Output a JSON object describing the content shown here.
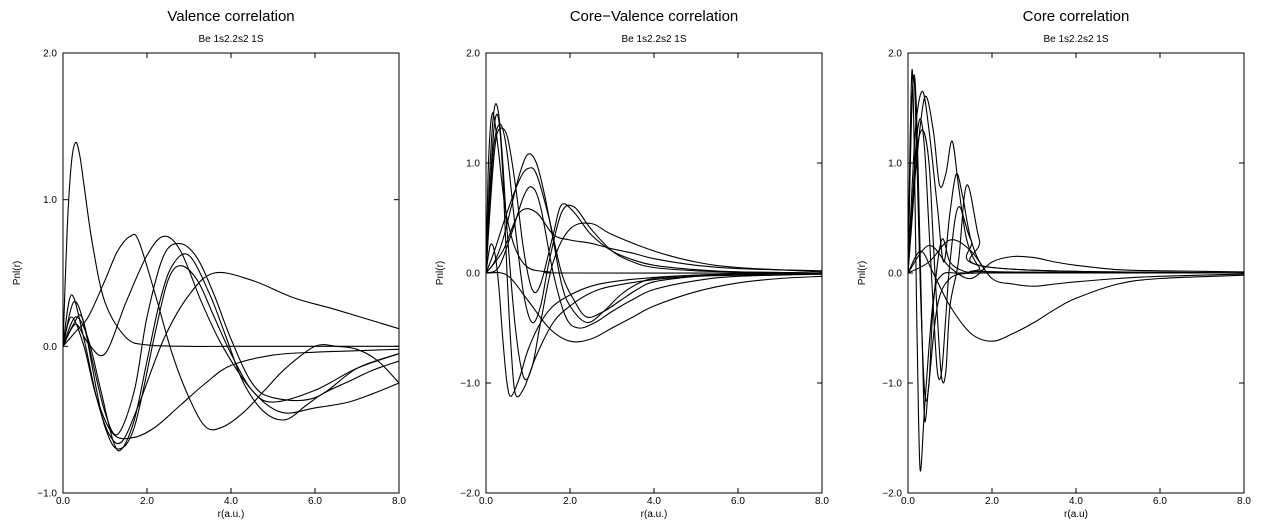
{
  "chart_data": [
    {
      "type": "line",
      "title": "Valence correlation",
      "subtitle": "Be 1s2.2s2 1S",
      "xlabel": "r(a.u.)",
      "ylabel": "Pnl(r)",
      "xlim": [
        0,
        8
      ],
      "ylim": [
        -1,
        2
      ],
      "xticks": [
        0,
        2,
        4,
        6,
        8
      ],
      "xtick_labels": [
        "0.0",
        "2.0",
        "4.0",
        "6.0",
        "8.0"
      ],
      "yticks": [
        -1,
        0,
        1,
        2
      ],
      "ytick_labels": [
        "−1.0",
        "0.0",
        "1.0",
        "2.0"
      ],
      "series": [
        {
          "x": [
            0,
            0.1,
            0.2,
            0.3,
            0.4,
            0.5,
            0.7,
            1.0,
            1.5,
            2.0,
            3.0,
            4.0,
            6.0,
            8.0
          ],
          "y": [
            0,
            0.8,
            1.25,
            1.39,
            1.3,
            1.1,
            0.7,
            0.3,
            0.06,
            0.01,
            0,
            0,
            0,
            0
          ]
        },
        {
          "x": [
            0,
            0.2,
            0.5,
            0.8,
            1.2,
            1.7,
            2.2,
            2.8,
            3.4,
            4.0,
            5.0,
            6.0,
            7.0,
            8.0
          ],
          "y": [
            0,
            0.2,
            0.0,
            -0.35,
            -0.6,
            -0.62,
            -0.55,
            -0.4,
            -0.25,
            -0.13,
            -0.06,
            -0.04,
            -0.03,
            -0.02
          ]
        },
        {
          "x": [
            0,
            0.2,
            0.5,
            0.8,
            1.1,
            1.4,
            1.8,
            2.4,
            3.0,
            3.6,
            4.5,
            5.5,
            6.5,
            8.0
          ],
          "y": [
            0,
            0.35,
            0.05,
            -0.35,
            -0.6,
            -0.65,
            -0.4,
            0.05,
            0.35,
            0.5,
            0.45,
            0.33,
            0.25,
            0.12
          ]
        },
        {
          "x": [
            0,
            0.25,
            0.5,
            0.8,
            1.0,
            1.3,
            1.7,
            2.2,
            2.5,
            2.8,
            3.2,
            3.6,
            4.0,
            4.5,
            5.0,
            6.0,
            7.0,
            8.0
          ],
          "y": [
            0,
            0.3,
            0.15,
            -0.3,
            -0.55,
            -0.7,
            -0.55,
            0.1,
            0.45,
            0.55,
            0.45,
            0.2,
            -0.05,
            -0.3,
            -0.38,
            -0.3,
            -0.15,
            -0.05
          ]
        },
        {
          "x": [
            0,
            0.25,
            0.45,
            0.7,
            1.0,
            1.3,
            1.7,
            2.0,
            2.4,
            2.8,
            3.2,
            3.6,
            4.0,
            4.5,
            5.0,
            6.0,
            7.0,
            8.0
          ],
          "y": [
            0,
            0.15,
            0.2,
            -0.1,
            -0.45,
            -0.6,
            -0.3,
            0.2,
            0.62,
            0.7,
            0.6,
            0.35,
            0.05,
            -0.25,
            -0.35,
            -0.35,
            -0.15,
            -0.05
          ]
        },
        {
          "x": [
            0,
            0.3,
            0.6,
            0.9,
            1.2,
            1.4,
            1.7,
            2.0,
            2.3,
            2.6,
            3.0,
            3.5,
            3.9,
            4.3,
            4.8,
            5.3,
            5.8,
            6.2,
            6.8,
            7.4,
            8.0
          ],
          "y": [
            0,
            0.2,
            0.05,
            -0.3,
            -0.65,
            -0.7,
            -0.5,
            -0.1,
            0.3,
            0.55,
            0.62,
            0.35,
            0.05,
            -0.25,
            -0.45,
            -0.5,
            -0.4,
            -0.32,
            -0.24,
            -0.16,
            -0.1
          ]
        },
        {
          "x": [
            0,
            0.3,
            0.6,
            1.0,
            1.3,
            1.6,
            1.8,
            2.2,
            2.6,
            3.0,
            3.4,
            3.8,
            4.3,
            4.8,
            5.3,
            6.0,
            6.5,
            7.0,
            7.5,
            8.0
          ],
          "y": [
            0,
            0.1,
            0.2,
            0.45,
            0.65,
            0.75,
            0.72,
            0.35,
            -0.05,
            -0.35,
            -0.55,
            -0.55,
            -0.45,
            -0.3,
            -0.15,
            0.0,
            0.0,
            -0.02,
            -0.1,
            -0.25
          ]
        },
        {
          "x": [
            0,
            0.3,
            0.6,
            1.0,
            1.5,
            2.0,
            2.4,
            2.8,
            3.3,
            3.8,
            4.5,
            5.2,
            6.0,
            6.8,
            7.4,
            8.0
          ],
          "y": [
            0,
            0.15,
            0.02,
            -0.05,
            0.3,
            0.62,
            0.75,
            0.65,
            0.3,
            0.0,
            -0.3,
            -0.45,
            -0.42,
            -0.38,
            -0.32,
            -0.25
          ]
        }
      ]
    },
    {
      "type": "line",
      "title": "Core−Valence correlation",
      "subtitle": "Be 1s2.2s2 1S",
      "xlabel": "r(a.u.)",
      "ylabel": "Pnl(r)",
      "xlim": [
        0,
        8
      ],
      "ylim": [
        -2,
        2
      ],
      "xticks": [
        0,
        2,
        4,
        6,
        8
      ],
      "xtick_labels": [
        "0.0",
        "2.0",
        "4.0",
        "6.0",
        "8.0"
      ],
      "yticks": [
        -2,
        -1,
        0,
        1,
        2
      ],
      "ytick_labels": [
        "−2.0",
        "−1.0",
        "0.0",
        "1.0",
        "2.0"
      ],
      "series": [
        {
          "x": [
            0,
            0.05,
            0.1,
            0.15,
            0.2,
            0.3,
            0.4,
            0.5,
            0.7,
            1.0,
            1.5,
            2.0,
            8.0
          ],
          "y": [
            0,
            0.9,
            1.3,
            1.45,
            1.4,
            1.1,
            0.75,
            0.5,
            0.22,
            0.05,
            0.01,
            0,
            0
          ]
        },
        {
          "x": [
            0,
            0.1,
            0.2,
            0.3,
            0.4,
            0.5,
            0.6,
            0.7,
            0.9,
            1.2,
            1.6,
            2.0,
            2.5,
            3.0,
            4.0,
            5.0,
            6.0,
            8.0
          ],
          "y": [
            0,
            0.8,
            1.35,
            1.4,
            0.9,
            0.0,
            -0.7,
            -1.1,
            -1.05,
            -0.75,
            -0.45,
            -0.3,
            -0.18,
            -0.12,
            -0.06,
            -0.03,
            -0.02,
            -0.01
          ]
        },
        {
          "x": [
            0,
            0.1,
            0.2,
            0.3,
            0.4,
            0.5,
            0.6,
            0.8,
            1.0,
            1.3,
            1.6,
            2.0,
            2.5,
            3.0,
            4.0,
            5.0,
            6.0,
            8.0
          ],
          "y": [
            0,
            0.25,
            0.2,
            -0.1,
            -0.6,
            -1.0,
            -1.12,
            -0.95,
            -0.7,
            -0.45,
            -0.3,
            -0.2,
            -0.12,
            -0.08,
            -0.04,
            -0.02,
            -0.01,
            0
          ]
        },
        {
          "x": [
            0,
            0.1,
            0.2,
            0.3,
            0.4,
            0.5,
            0.7,
            0.9,
            1.1,
            1.3,
            1.6,
            2.0,
            2.5,
            3.0,
            4.0,
            5.0,
            6.0,
            8.0
          ],
          "y": [
            0,
            1.0,
            1.5,
            1.45,
            1.0,
            0.4,
            -0.5,
            -0.95,
            -0.85,
            -0.45,
            0.1,
            0.4,
            0.45,
            0.35,
            0.2,
            0.1,
            0.05,
            0.01
          ]
        },
        {
          "x": [
            0,
            0.1,
            0.2,
            0.35,
            0.5,
            0.7,
            0.9,
            1.1,
            1.3,
            1.5,
            1.8,
            2.1,
            2.5,
            3.0,
            3.5,
            4.0,
            5.0,
            6.0,
            8.0
          ],
          "y": [
            0,
            0.7,
            1.2,
            1.35,
            1.1,
            0.4,
            -0.2,
            -0.45,
            -0.3,
            0.1,
            0.55,
            0.6,
            0.4,
            0.2,
            0.1,
            0.05,
            0.02,
            0.01,
            0
          ]
        },
        {
          "x": [
            0,
            0.1,
            0.2,
            0.3,
            0.5,
            0.7,
            0.9,
            1.1,
            1.3,
            1.6,
            1.8,
            2.1,
            2.5,
            3.0,
            3.5,
            4.0,
            5.0,
            6.0,
            8.0
          ],
          "y": [
            0,
            0.6,
            1.1,
            1.3,
            1.25,
            0.8,
            0.2,
            -0.15,
            -0.1,
            0.35,
            0.62,
            0.55,
            0.35,
            0.2,
            0.12,
            0.07,
            0.03,
            0.01,
            0
          ]
        },
        {
          "x": [
            0,
            0.2,
            0.4,
            0.6,
            0.8,
            1.0,
            1.2,
            1.4,
            1.6,
            1.8,
            2.0,
            2.4,
            2.8,
            3.2,
            3.6,
            4.0,
            5.0,
            6.0,
            8.0
          ],
          "y": [
            0,
            0.1,
            0.3,
            0.6,
            0.9,
            1.08,
            1.0,
            0.7,
            0.3,
            -0.1,
            -0.3,
            -0.45,
            -0.35,
            -0.2,
            -0.1,
            -0.05,
            -0.02,
            -0.01,
            0
          ]
        },
        {
          "x": [
            0,
            0.2,
            0.5,
            0.8,
            1.0,
            1.2,
            1.5,
            1.8,
            2.1,
            2.4,
            2.8,
            3.2,
            3.6,
            4.0,
            5.0,
            6.0,
            8.0
          ],
          "y": [
            0,
            0.2,
            0.55,
            0.85,
            0.95,
            0.9,
            0.5,
            0.0,
            -0.25,
            -0.4,
            -0.35,
            -0.25,
            -0.15,
            -0.08,
            -0.03,
            -0.01,
            0
          ]
        },
        {
          "x": [
            0,
            0.3,
            0.6,
            0.9,
            1.1,
            1.3,
            1.6,
            1.9,
            2.2,
            2.6,
            3.0,
            3.5,
            4.0,
            5.0,
            6.0,
            8.0
          ],
          "y": [
            0,
            0.05,
            0.35,
            0.7,
            0.78,
            0.6,
            0.0,
            -0.4,
            -0.5,
            -0.45,
            -0.35,
            -0.24,
            -0.15,
            -0.07,
            -0.03,
            -0.01
          ]
        },
        {
          "x": [
            0,
            0.5,
            1.0,
            1.5,
            2.0,
            2.5,
            3.0,
            3.5,
            4.0,
            5.0,
            6.0,
            7.0,
            8.0
          ],
          "y": [
            0,
            -0.02,
            -0.25,
            -0.5,
            -0.62,
            -0.6,
            -0.5,
            -0.4,
            -0.3,
            -0.17,
            -0.09,
            -0.05,
            -0.03
          ]
        },
        {
          "x": [
            0,
            0.4,
            0.8,
            1.2,
            1.6,
            2.0,
            2.5,
            3.0,
            3.5,
            4.0,
            5.0,
            6.0,
            8.0
          ],
          "y": [
            0,
            0.2,
            0.55,
            0.55,
            0.35,
            0.3,
            0.27,
            0.22,
            0.18,
            0.13,
            0.07,
            0.04,
            0.02
          ]
        }
      ]
    },
    {
      "type": "line",
      "title": "Core correlation",
      "subtitle": "Be 1s2.2s2 1S",
      "xlabel": "r(a.u)",
      "ylabel": "Pnl(r)",
      "xlim": [
        0,
        8
      ],
      "ylim": [
        -2,
        2
      ],
      "xticks": [
        0,
        2,
        4,
        6,
        8
      ],
      "xtick_labels": [
        "0.0",
        "2.0",
        "4.0",
        "6.0",
        "8.0"
      ],
      "yticks": [
        -2,
        -1,
        0,
        1,
        2
      ],
      "ytick_labels": [
        "−2.0",
        "−1.0",
        "0.0",
        "1.0",
        "2.0"
      ],
      "series": [
        {
          "x": [
            0,
            0.05,
            0.1,
            0.15,
            0.2,
            0.25,
            0.3,
            0.35,
            0.4,
            0.5,
            0.7,
            1.0,
            1.5,
            2.0,
            8.0
          ],
          "y": [
            0,
            1.0,
            1.6,
            1.8,
            1.5,
            0.8,
            0.0,
            -0.8,
            -1.35,
            -1.0,
            -0.3,
            -0.05,
            0,
            0,
            0
          ]
        },
        {
          "x": [
            0,
            0.05,
            0.1,
            0.15,
            0.2,
            0.25,
            0.3,
            0.4,
            0.6,
            0.8,
            1.2,
            2.0,
            8.0
          ],
          "y": [
            0,
            1.2,
            1.85,
            1.1,
            -0.2,
            -1.3,
            -1.8,
            -1.2,
            -0.25,
            -0.02,
            0,
            0,
            0
          ]
        },
        {
          "x": [
            0,
            0.05,
            0.1,
            0.15,
            0.2,
            0.3,
            0.4,
            0.5,
            0.6,
            0.8,
            1.0,
            1.3,
            1.6,
            2.0,
            8.0
          ],
          "y": [
            0,
            0.9,
            1.6,
            1.75,
            1.2,
            -0.2,
            -1.1,
            -1.0,
            -0.3,
            0.3,
            0.1,
            0.02,
            0,
            0,
            0
          ]
        },
        {
          "x": [
            0,
            0.1,
            0.2,
            0.3,
            0.4,
            0.5,
            0.6,
            0.7,
            0.8,
            0.9,
            1.0,
            1.2,
            1.5,
            2.0,
            8.0
          ],
          "y": [
            0,
            0.6,
            1.2,
            1.4,
            1.1,
            0.4,
            -0.3,
            -0.9,
            -0.9,
            -0.4,
            0.1,
            0.6,
            0.3,
            0.05,
            0
          ]
        },
        {
          "x": [
            0,
            0.1,
            0.2,
            0.35,
            0.5,
            0.7,
            0.85,
            1.0,
            1.15,
            1.3,
            1.5,
            1.8,
            2.2,
            8.0
          ],
          "y": [
            0,
            0.8,
            1.4,
            1.65,
            1.3,
            0.6,
            0.1,
            0.55,
            0.9,
            0.7,
            0.3,
            0.05,
            0.01,
            0
          ]
        },
        {
          "x": [
            0,
            0.1,
            0.2,
            0.4,
            0.6,
            0.75,
            0.9,
            1.05,
            1.2,
            1.4,
            1.7,
            2.0,
            8.0
          ],
          "y": [
            0,
            0.5,
            1.0,
            1.6,
            1.3,
            0.8,
            0.9,
            1.2,
            0.8,
            0.3,
            0.05,
            0.01,
            0
          ]
        },
        {
          "x": [
            0,
            0.1,
            0.2,
            0.35,
            0.5,
            0.6,
            0.7,
            0.8,
            0.9,
            1.0,
            1.2,
            1.4,
            1.7,
            2.0,
            8.0
          ],
          "y": [
            0,
            0.6,
            1.1,
            1.3,
            1.0,
            0.3,
            -0.4,
            -0.95,
            -0.9,
            -0.3,
            0.1,
            0.8,
            0.3,
            0.05,
            0
          ]
        },
        {
          "x": [
            0,
            0.3,
            0.6,
            1.0,
            1.5,
            2.0,
            2.5,
            3.0,
            3.5,
            4.0,
            5.0,
            6.0,
            8.0
          ],
          "y": [
            0,
            0.2,
            0.0,
            -0.3,
            -0.55,
            -0.62,
            -0.55,
            -0.45,
            -0.33,
            -0.23,
            -0.1,
            -0.05,
            -0.02
          ]
        },
        {
          "x": [
            0,
            0.5,
            1.0,
            1.5,
            2.0,
            2.5,
            3.0,
            3.5,
            4.0,
            5.0,
            6.0,
            8.0
          ],
          "y": [
            0,
            0.25,
            0.05,
            -0.05,
            0.1,
            0.15,
            0.14,
            0.1,
            0.07,
            0.03,
            0.02,
            0.01
          ]
        },
        {
          "x": [
            0,
            0.5,
            1.0,
            1.5,
            2.0,
            2.5,
            3.0,
            3.5,
            4.0,
            5.0,
            6.0,
            8.0
          ],
          "y": [
            0,
            0.1,
            0.3,
            0.2,
            -0.05,
            -0.1,
            -0.12,
            -0.1,
            -0.08,
            -0.05,
            -0.03,
            -0.01
          ]
        }
      ]
    }
  ]
}
